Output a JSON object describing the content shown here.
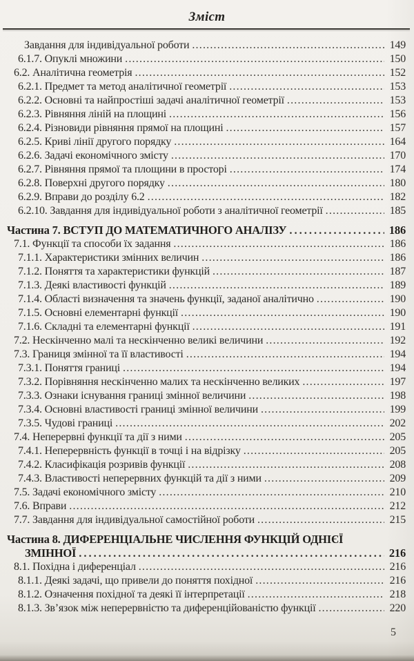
{
  "header": {
    "title": "Зміст"
  },
  "footer": {
    "page_number": "5"
  },
  "toc": {
    "entries": [
      {
        "text": "Завдання для індивідуальної роботи",
        "page": "149",
        "level": "3"
      },
      {
        "text": "6.1.7. Опуклі множини",
        "page": "150",
        "level": "2"
      },
      {
        "text": "6.2. Аналітична геометрія",
        "page": "152",
        "level": "1"
      },
      {
        "text": "6.2.1. Предмет та метод аналітичної геометрії",
        "page": "153",
        "level": "2"
      },
      {
        "text": "6.2.2. Основні та найпростіші задачі аналітичної геометрії",
        "page": "153",
        "level": "2"
      },
      {
        "text": "6.2.3. Рівняння ліній на площині",
        "page": "156",
        "level": "2"
      },
      {
        "text": "6.2.4. Різновиди рівняння прямої на площині",
        "page": "157",
        "level": "2"
      },
      {
        "text": "6.2.5. Криві лінії другого порядку",
        "page": "164",
        "level": "2"
      },
      {
        "text": "6.2.6. Задачі економічного змісту",
        "page": "170",
        "level": "2"
      },
      {
        "text": "6.2.7. Рівняння прямої та площини в просторі",
        "page": "174",
        "level": "2"
      },
      {
        "text": "6.2.8. Поверхні другого порядку",
        "page": "180",
        "level": "2"
      },
      {
        "text": "6.2.9. Вправи до розділу 6.2",
        "page": "182",
        "level": "2"
      },
      {
        "text": "6.2.10. Завдання для індивідуальної роботи з аналітичної геометрії",
        "page": "185",
        "level": "2"
      },
      {
        "text": "Частина 7. ВСТУП ДО МАТЕМАТИЧНОГО АНАЛІЗУ",
        "page": "186",
        "level": "chapter",
        "chapter_start": true
      },
      {
        "text": "7.1. Функції та способи їх задання",
        "page": "186",
        "level": "1"
      },
      {
        "text": "7.1.1. Характеристики змінних величин",
        "page": "186",
        "level": "2"
      },
      {
        "text": "7.1.2. Поняття та характеристики функцій",
        "page": "187",
        "level": "2"
      },
      {
        "text": "7.1.3. Деякі властивості функцій",
        "page": "189",
        "level": "2"
      },
      {
        "text": "7.1.4. Області визначення та значень функції, заданої аналітично",
        "page": "190",
        "level": "2"
      },
      {
        "text": "7.1.5. Основні елементарні функції",
        "page": "190",
        "level": "2"
      },
      {
        "text": "7.1.6. Складні та елементарні функції",
        "page": "191",
        "level": "2"
      },
      {
        "text": "7.2. Нескінченно малі та нескінченно великі величини",
        "page": "192",
        "level": "1"
      },
      {
        "text": "7.3. Границя змінної та її властивості",
        "page": "194",
        "level": "1"
      },
      {
        "text": "7.3.1. Поняття границі",
        "page": "194",
        "level": "2"
      },
      {
        "text": "7.3.2. Порівняння нескінченно малих та нескінченно великих",
        "page": "197",
        "level": "2"
      },
      {
        "text": "7.3.3. Ознаки існування границі змінної величини",
        "page": "198",
        "level": "2"
      },
      {
        "text": "7.3.4. Основні властивості границі змінної величини",
        "page": "199",
        "level": "2"
      },
      {
        "text": "7.3.5. Чудові границі",
        "page": "202",
        "level": "2"
      },
      {
        "text": "7.4. Неперервні функції та дії з ними",
        "page": "205",
        "level": "1"
      },
      {
        "text": "7.4.1. Неперервність функції в точці і на відрізку",
        "page": "205",
        "level": "2"
      },
      {
        "text": "7.4.2. Класифікація розривів функції",
        "page": "208",
        "level": "2"
      },
      {
        "text": "7.4.3. Властивості неперервних функцій та дії з ними",
        "page": "209",
        "level": "2"
      },
      {
        "text": "7.5. Задачі економічного змісту",
        "page": "210",
        "level": "1"
      },
      {
        "text": "7.6. Вправи",
        "page": "212",
        "level": "1"
      },
      {
        "text": "7.7. Завдання для індивідуальної самостійної роботи",
        "page": "215",
        "level": "1"
      },
      {
        "text": "Частина 8. ДИФЕРЕНЦІАЛЬНЕ ЧИСЛЕННЯ ФУНКЦІЙ ОДНІЄЇ",
        "page": null,
        "level": "chapter",
        "chapter_start": true
      },
      {
        "text": "ЗМІННОЇ",
        "page": "216",
        "level": "chapter-cont"
      },
      {
        "text": "8.1. Похідна і диференціал",
        "page": "216",
        "level": "1"
      },
      {
        "text": "8.1.1. Деякі задачі, що привели до поняття похідної",
        "page": "216",
        "level": "2"
      },
      {
        "text": "8.1.2. Означення похідної та деякі її інтерпретації",
        "page": "218",
        "level": "2"
      },
      {
        "text": "8.1.3. Зв’язок між неперервністю та диференційованістю функції",
        "page": "220",
        "level": "2"
      }
    ]
  }
}
